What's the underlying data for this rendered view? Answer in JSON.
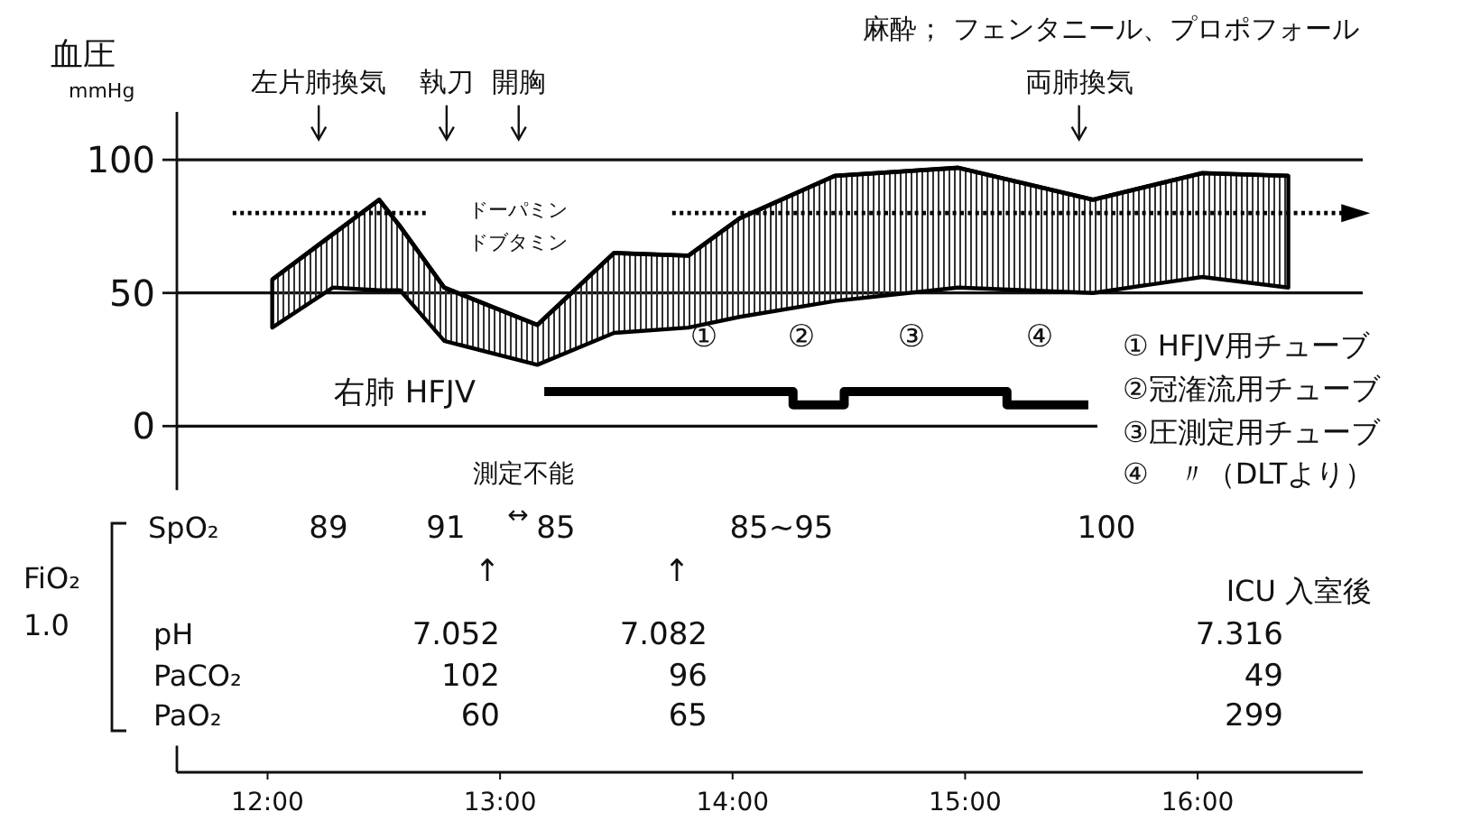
{
  "chart_data": {
    "type": "line",
    "ylabel": "血圧",
    "xlim": [
      11.61,
      16.71
    ],
    "ylim": [
      -130,
      118
    ],
    "xticks": [
      {
        "value": 12,
        "label": "12:00"
      },
      {
        "value": 13,
        "label": "13:00"
      },
      {
        "value": 14,
        "label": "14:00"
      },
      {
        "value": 15,
        "label": "15:00"
      },
      {
        "value": 16,
        "label": "16:00"
      }
    ],
    "yticks": [
      0,
      50,
      100
    ],
    "grid": "y",
    "series": [
      {
        "color": "#000000",
        "x": [
          12.02,
          12.28,
          12.48,
          12.57,
          12.76,
          13.16,
          13.49,
          13.81,
          14.03,
          14.44,
          14.97,
          15.55,
          16.02,
          16.39
        ],
        "values": [
          55,
          72,
          85,
          75,
          52,
          38,
          65,
          64,
          78,
          94,
          97,
          85,
          95,
          94
        ],
        "upper": [
          55,
          72,
          85,
          75,
          52,
          38,
          65,
          64,
          78,
          94,
          97,
          85,
          95,
          94
        ],
        "lower": [
          37,
          52,
          51,
          51,
          32,
          23,
          35,
          37,
          41,
          47,
          52,
          50,
          56,
          52
        ]
      },
      {
        "type": "line",
        "line_style": "dotted",
        "color": "#000000",
        "x": [
          11.85,
          12.68
        ],
        "values": [
          80,
          80
        ]
      },
      {
        "type": "line",
        "line_style": "dotted",
        "color": "#000000",
        "x": [
          13.74,
          16.68
        ],
        "values": [
          80,
          80
        ]
      },
      {
        "type": "step",
        "name": "右肺 HFJV",
        "color": "#000000",
        "x": [
          13.19,
          14.26,
          14.48,
          15.18,
          15.53
        ],
        "values": [
          13,
          13,
          8,
          13,
          8
        ]
      }
    ],
    "annotations": [
      "麻酔； フェンタニール、プロポフォール",
      "mmHg",
      "ドーパミン",
      "ドブタミン",
      "① HFJV用チューブ",
      "②冠潅流用チューブ",
      "③圧測定用チューブ",
      "④　〃（DLTより）",
      "SpO₂",
      "89",
      "91",
      "測定不能",
      "↔",
      "85",
      "85~95",
      "100",
      "↑",
      "↑",
      "FiO₂",
      "1.0",
      "ICU 入室後",
      "pH",
      "PaCO₂",
      "PaO₂",
      "7.052",
      "102",
      "60",
      "7.082",
      "96",
      "65",
      "7.316",
      "49",
      "299",
      {
        "text": "左片肺換気",
        "x": 12.22,
        "y": 111
      },
      {
        "text": "執刀",
        "x": 12.77,
        "y": 111
      },
      {
        "text": "開胸",
        "x": 13.08,
        "y": 111
      },
      {
        "text": "両肺換気",
        "x": 15.49,
        "y": 111
      },
      "①",
      "②",
      "③",
      "④"
    ]
  }
}
